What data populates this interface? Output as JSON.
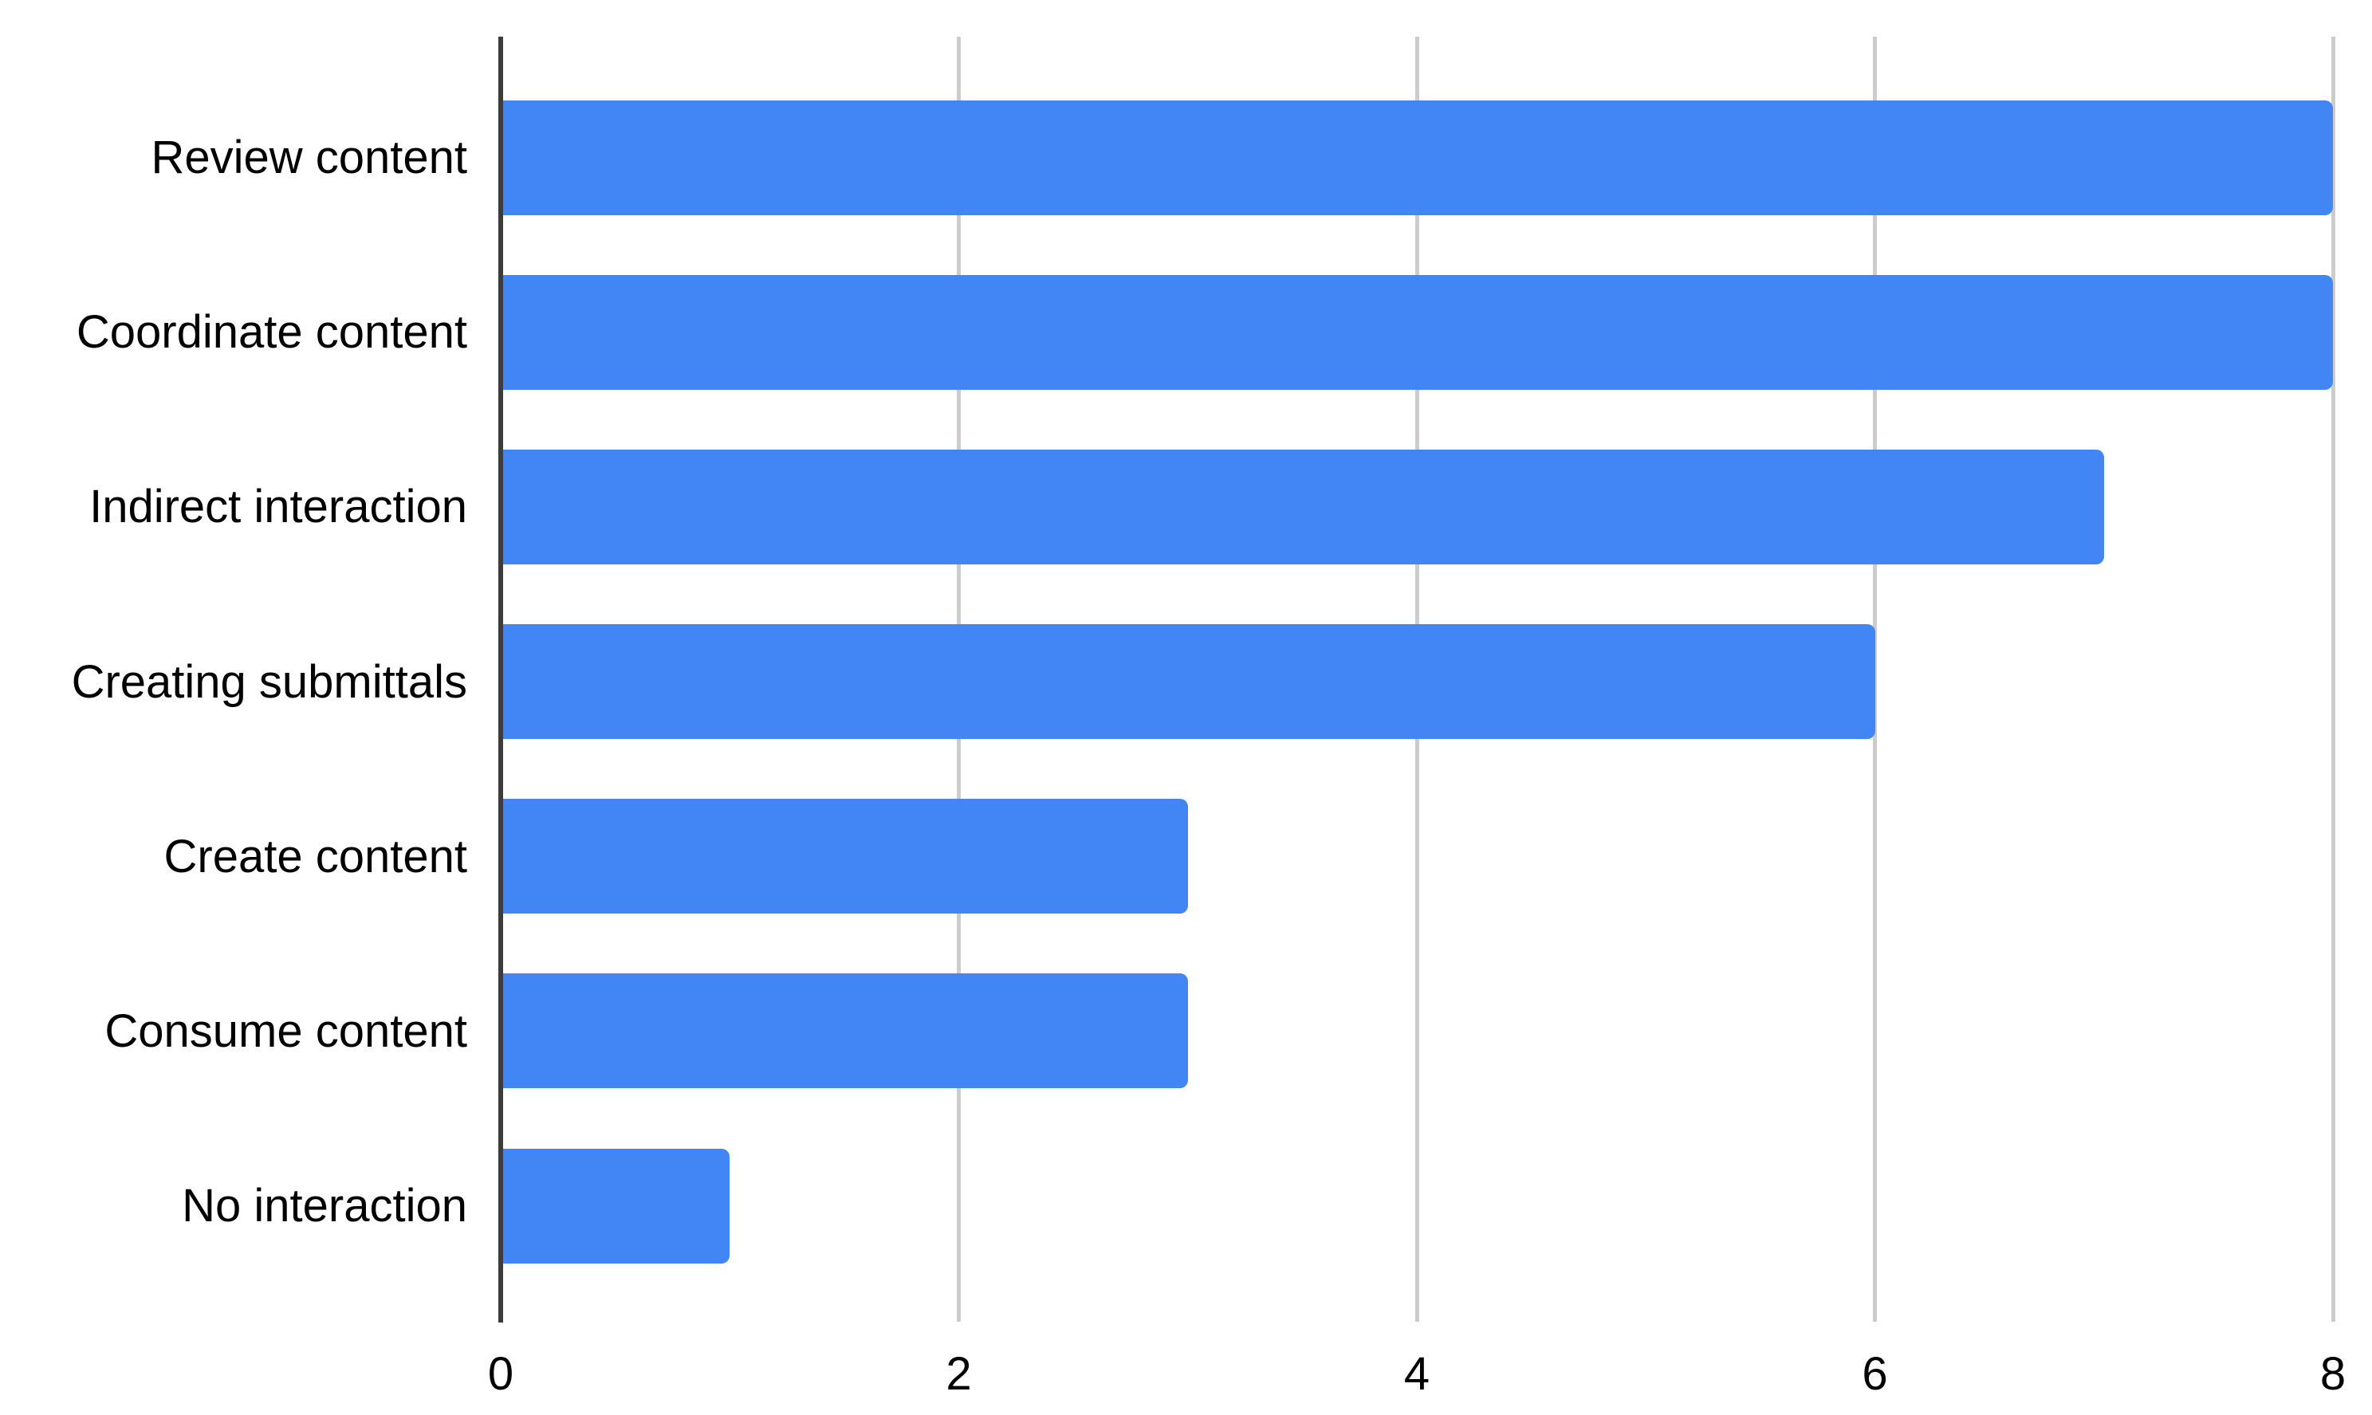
{
  "chart_data": {
    "type": "bar",
    "orientation": "horizontal",
    "title": "",
    "xlabel": "",
    "ylabel": "",
    "categories": [
      "Review content",
      "Coordinate content",
      "Indirect interaction",
      "Creating submittals",
      "Create content",
      "Consume content",
      "No interaction"
    ],
    "values": [
      8,
      8,
      7,
      6,
      3,
      3,
      1
    ],
    "xlim": [
      0,
      8
    ],
    "x_ticks": [
      0,
      2,
      4,
      6,
      8
    ],
    "grid": "vertical gridlines at each x tick, axis line at 0",
    "legend": "none",
    "colors": {
      "bar": "#4285F4",
      "axis": "#3c3c3c",
      "gridline": "#cccccc",
      "text": "#000000",
      "background": "#ffffff"
    }
  }
}
